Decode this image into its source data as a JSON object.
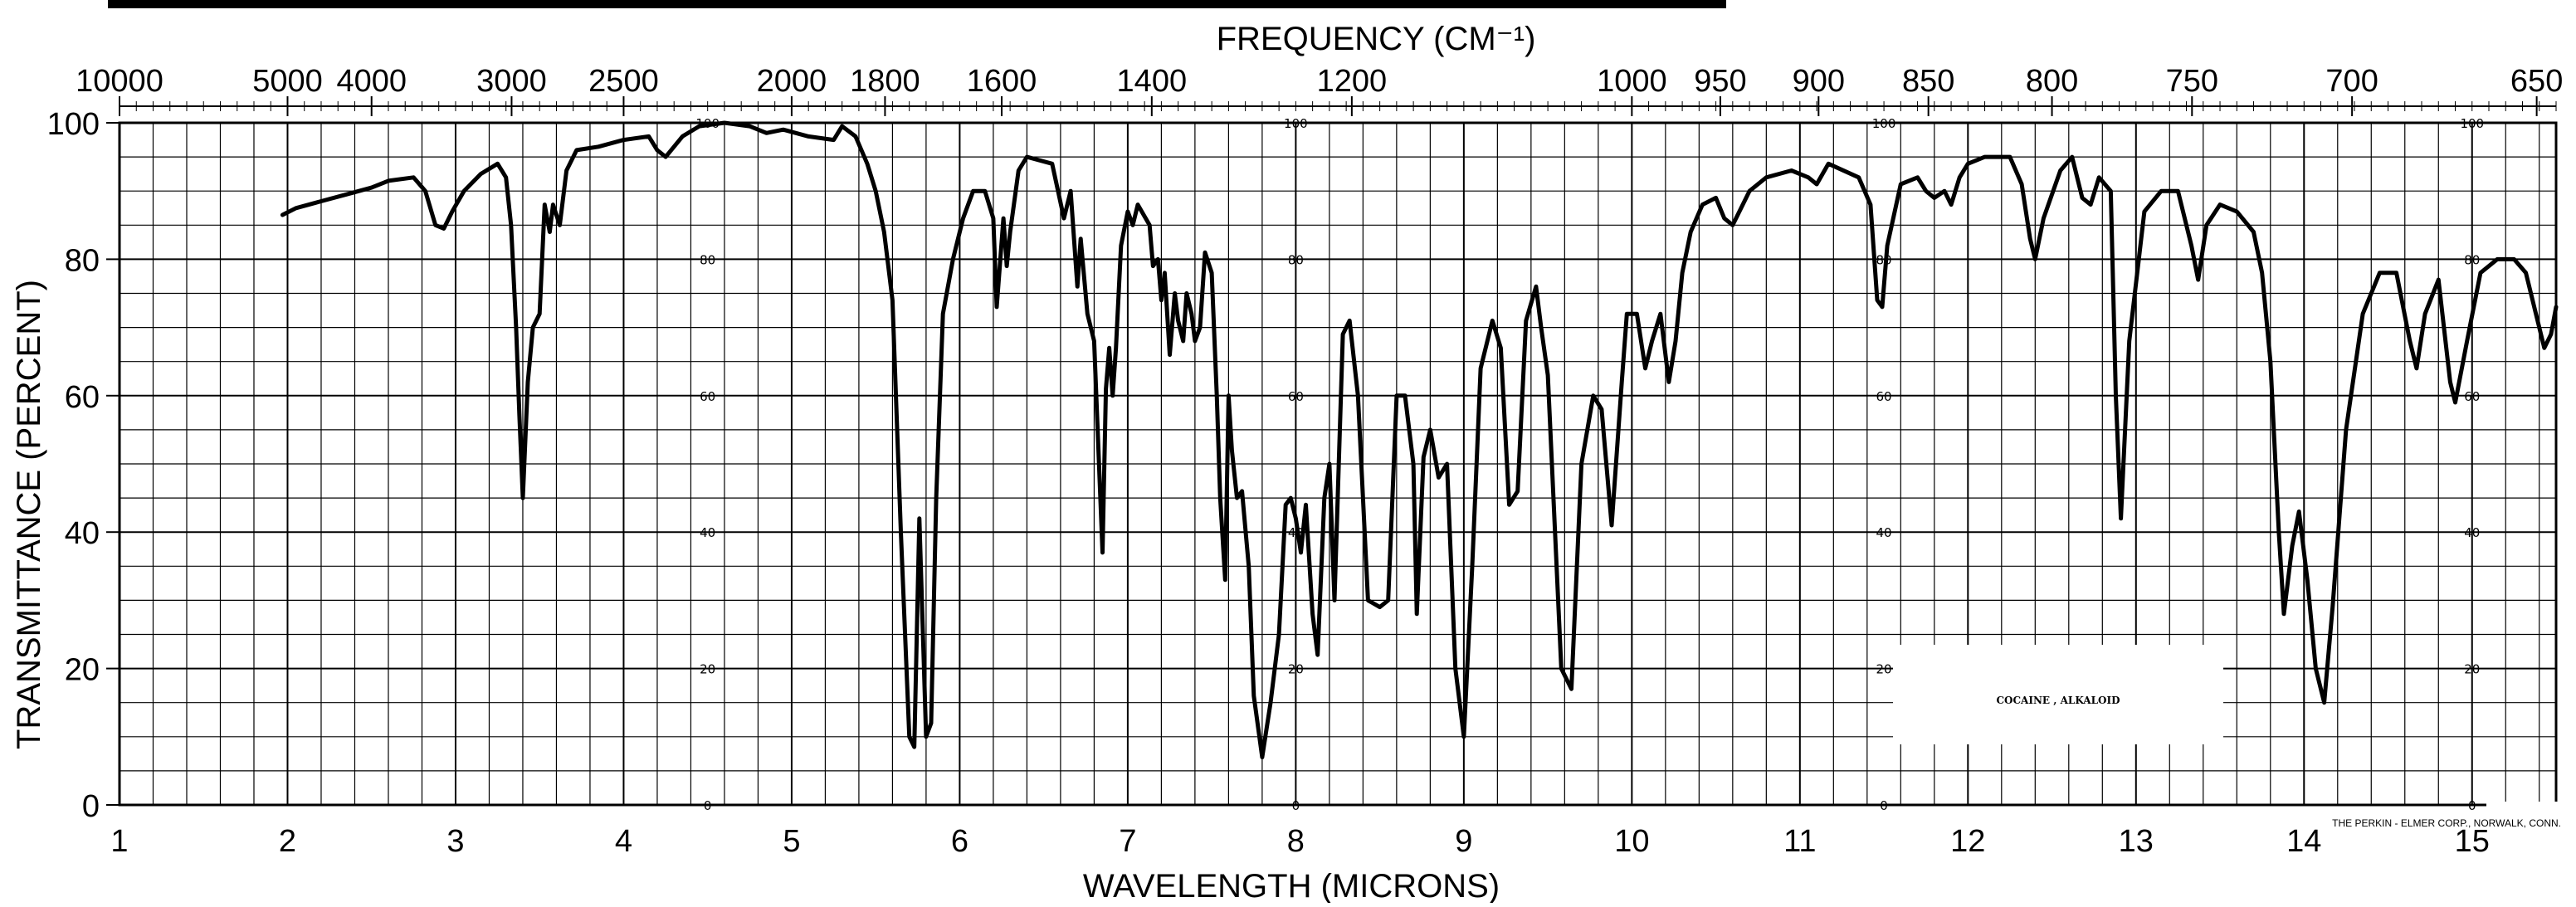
{
  "chart_data": {
    "type": "line",
    "title": "",
    "xlabel": "WAVELENGTH (MICRONS)",
    "x2label": "FREQUENCY (CM⁻¹)",
    "ylabel": "TRANSMITTANCE (PERCENT)",
    "xlim": [
      1,
      15.5
    ],
    "ylim": [
      0,
      100
    ],
    "grid": true,
    "x_ticks": [
      "1",
      "2",
      "3",
      "4",
      "5",
      "6",
      "7",
      "8",
      "9",
      "10",
      "11",
      "12",
      "13",
      "14",
      "15"
    ],
    "y_ticks": [
      "0",
      "20",
      "40",
      "60",
      "80",
      "100"
    ],
    "frequency_ticks": [
      "10000",
      "5000",
      "4000",
      "3000",
      "2500",
      "2000",
      "1800",
      "1600",
      "1400",
      "1200",
      "1000",
      "950",
      "900",
      "850",
      "800",
      "750",
      "700",
      "650"
    ],
    "overlay_scale_labels": [
      "100",
      "80",
      "60",
      "40",
      "20",
      "0"
    ],
    "sample_label": "COCAINE , ALKALOID",
    "credit": "THE PERKIN - ELMER CORP., NORWALK, CONN.",
    "series": [
      {
        "name": "",
        "color": "#000000",
        "points": [
          [
            1.97,
            86.5
          ],
          [
            2.05,
            87.5
          ],
          [
            2.2,
            88.5
          ],
          [
            2.35,
            89.5
          ],
          [
            2.5,
            90.5
          ],
          [
            2.6,
            91.5
          ],
          [
            2.75,
            92
          ],
          [
            2.82,
            90
          ],
          [
            2.88,
            85
          ],
          [
            2.93,
            84.5
          ],
          [
            2.98,
            87
          ],
          [
            3.05,
            90
          ],
          [
            3.15,
            92.5
          ],
          [
            3.25,
            94
          ],
          [
            3.3,
            92
          ],
          [
            3.33,
            85
          ],
          [
            3.36,
            70
          ],
          [
            3.38,
            57
          ],
          [
            3.4,
            45
          ],
          [
            3.43,
            62
          ],
          [
            3.46,
            70
          ],
          [
            3.5,
            72
          ],
          [
            3.53,
            88
          ],
          [
            3.56,
            84
          ],
          [
            3.58,
            88
          ],
          [
            3.62,
            85
          ],
          [
            3.66,
            93
          ],
          [
            3.72,
            96
          ],
          [
            3.85,
            96.5
          ],
          [
            4.0,
            97.5
          ],
          [
            4.15,
            98
          ],
          [
            4.2,
            96
          ],
          [
            4.25,
            95
          ],
          [
            4.35,
            98
          ],
          [
            4.45,
            99.5
          ],
          [
            4.6,
            100
          ],
          [
            4.75,
            99.5
          ],
          [
            4.85,
            98.5
          ],
          [
            4.95,
            99
          ],
          [
            5.1,
            98
          ],
          [
            5.25,
            97.5
          ],
          [
            5.3,
            99.5
          ],
          [
            5.38,
            98
          ],
          [
            5.45,
            94
          ],
          [
            5.5,
            90
          ],
          [
            5.55,
            84
          ],
          [
            5.6,
            74
          ],
          [
            5.65,
            40
          ],
          [
            5.7,
            10
          ],
          [
            5.73,
            8.5
          ],
          [
            5.76,
            42
          ],
          [
            5.8,
            10
          ],
          [
            5.83,
            12
          ],
          [
            5.86,
            45
          ],
          [
            5.9,
            72
          ],
          [
            5.96,
            80
          ],
          [
            6.02,
            86
          ],
          [
            6.08,
            90
          ],
          [
            6.15,
            90
          ],
          [
            6.2,
            86
          ],
          [
            6.22,
            73
          ],
          [
            6.26,
            86
          ],
          [
            6.28,
            79
          ],
          [
            6.3,
            84
          ],
          [
            6.35,
            93
          ],
          [
            6.4,
            95
          ],
          [
            6.55,
            94
          ],
          [
            6.62,
            86
          ],
          [
            6.66,
            90
          ],
          [
            6.7,
            76
          ],
          [
            6.72,
            83
          ],
          [
            6.76,
            72
          ],
          [
            6.8,
            68
          ],
          [
            6.85,
            37
          ],
          [
            6.87,
            61
          ],
          [
            6.89,
            67
          ],
          [
            6.91,
            60
          ],
          [
            6.93,
            67
          ],
          [
            6.96,
            82
          ],
          [
            7.0,
            87
          ],
          [
            7.03,
            85
          ],
          [
            7.06,
            88
          ],
          [
            7.13,
            85
          ],
          [
            7.15,
            79
          ],
          [
            7.18,
            80
          ],
          [
            7.2,
            74
          ],
          [
            7.22,
            78
          ],
          [
            7.25,
            66
          ],
          [
            7.28,
            75
          ],
          [
            7.3,
            71
          ],
          [
            7.33,
            68
          ],
          [
            7.35,
            75
          ],
          [
            7.38,
            72
          ],
          [
            7.4,
            68
          ],
          [
            7.43,
            70
          ],
          [
            7.46,
            81
          ],
          [
            7.5,
            78
          ],
          [
            7.53,
            60
          ],
          [
            7.55,
            45
          ],
          [
            7.58,
            33
          ],
          [
            7.6,
            60
          ],
          [
            7.62,
            52
          ],
          [
            7.65,
            45
          ],
          [
            7.68,
            46
          ],
          [
            7.72,
            35
          ],
          [
            7.75,
            16
          ],
          [
            7.8,
            7
          ],
          [
            7.85,
            15
          ],
          [
            7.9,
            25
          ],
          [
            7.94,
            44
          ],
          [
            7.97,
            45
          ],
          [
            8.0,
            42
          ],
          [
            8.03,
            37
          ],
          [
            8.06,
            44
          ],
          [
            8.1,
            28
          ],
          [
            8.13,
            22
          ],
          [
            8.17,
            45
          ],
          [
            8.2,
            50
          ],
          [
            8.23,
            30
          ],
          [
            8.28,
            69
          ],
          [
            8.32,
            71
          ],
          [
            8.37,
            60
          ],
          [
            8.43,
            30
          ],
          [
            8.5,
            29
          ],
          [
            8.55,
            30
          ],
          [
            8.6,
            60
          ],
          [
            8.65,
            60
          ],
          [
            8.7,
            50
          ],
          [
            8.72,
            28
          ],
          [
            8.76,
            51
          ],
          [
            8.8,
            55
          ],
          [
            8.85,
            48
          ],
          [
            8.9,
            50
          ],
          [
            8.95,
            20
          ],
          [
            9.0,
            10
          ],
          [
            9.05,
            35
          ],
          [
            9.1,
            64
          ],
          [
            9.17,
            71
          ],
          [
            9.22,
            67
          ],
          [
            9.27,
            44
          ],
          [
            9.32,
            46
          ],
          [
            9.37,
            71
          ],
          [
            9.43,
            76
          ],
          [
            9.46,
            70
          ],
          [
            9.5,
            63
          ],
          [
            9.58,
            20
          ],
          [
            9.64,
            17
          ],
          [
            9.7,
            50
          ],
          [
            9.77,
            60
          ],
          [
            9.82,
            58
          ],
          [
            9.88,
            41
          ],
          [
            9.94,
            62
          ],
          [
            9.97,
            72
          ],
          [
            10.03,
            72
          ],
          [
            10.08,
            64
          ],
          [
            10.12,
            68
          ],
          [
            10.17,
            72
          ],
          [
            10.22,
            62
          ],
          [
            10.26,
            68
          ],
          [
            10.3,
            78
          ],
          [
            10.35,
            84
          ],
          [
            10.42,
            88
          ],
          [
            10.5,
            89
          ],
          [
            10.55,
            86
          ],
          [
            10.6,
            85
          ],
          [
            10.7,
            90
          ],
          [
            10.8,
            92
          ],
          [
            10.95,
            93
          ],
          [
            11.05,
            92
          ],
          [
            11.1,
            91
          ],
          [
            11.17,
            94
          ],
          [
            11.35,
            92
          ],
          [
            11.42,
            88
          ],
          [
            11.46,
            74
          ],
          [
            11.49,
            73
          ],
          [
            11.52,
            82
          ],
          [
            11.6,
            91
          ],
          [
            11.7,
            92
          ],
          [
            11.75,
            90
          ],
          [
            11.8,
            89
          ],
          [
            11.86,
            90
          ],
          [
            11.9,
            88
          ],
          [
            11.95,
            92
          ],
          [
            12.0,
            94
          ],
          [
            12.1,
            95
          ],
          [
            12.18,
            95
          ],
          [
            12.25,
            95
          ],
          [
            12.32,
            91
          ],
          [
            12.37,
            83
          ],
          [
            12.4,
            80
          ],
          [
            12.45,
            86
          ],
          [
            12.55,
            93
          ],
          [
            12.62,
            95
          ],
          [
            12.68,
            89
          ],
          [
            12.73,
            88
          ],
          [
            12.78,
            92
          ],
          [
            12.85,
            90
          ],
          [
            12.88,
            60
          ],
          [
            12.91,
            42
          ],
          [
            12.96,
            68
          ],
          [
            13.05,
            87
          ],
          [
            13.15,
            90
          ],
          [
            13.25,
            90
          ],
          [
            13.33,
            82
          ],
          [
            13.37,
            77
          ],
          [
            13.42,
            85
          ],
          [
            13.5,
            88
          ],
          [
            13.6,
            87
          ],
          [
            13.7,
            84
          ],
          [
            13.75,
            78
          ],
          [
            13.8,
            65
          ],
          [
            13.85,
            40
          ],
          [
            13.88,
            28
          ],
          [
            13.93,
            38
          ],
          [
            13.97,
            43
          ],
          [
            14.02,
            33
          ],
          [
            14.07,
            20
          ],
          [
            14.12,
            15
          ],
          [
            14.17,
            29
          ],
          [
            14.25,
            55
          ],
          [
            14.35,
            72
          ],
          [
            14.45,
            78
          ],
          [
            14.55,
            78
          ],
          [
            14.63,
            68
          ],
          [
            14.67,
            64
          ],
          [
            14.72,
            72
          ],
          [
            14.8,
            77
          ],
          [
            14.87,
            62
          ],
          [
            14.9,
            59
          ],
          [
            14.97,
            68
          ],
          [
            15.05,
            78
          ],
          [
            15.15,
            80
          ],
          [
            15.25,
            80
          ],
          [
            15.32,
            78
          ],
          [
            15.38,
            72
          ],
          [
            15.43,
            67
          ],
          [
            15.47,
            69
          ],
          [
            15.5,
            73
          ]
        ]
      }
    ]
  }
}
